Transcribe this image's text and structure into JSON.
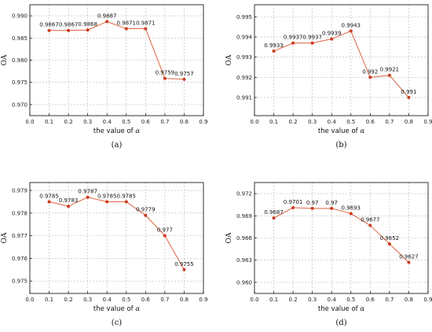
{
  "chart_data": [
    {
      "type": "line",
      "panel_label": "(a)",
      "xlabel_prefix": "the value of ",
      "xlabel_symbol": "α",
      "ylabel": "OA",
      "xlim": [
        0.0,
        0.9
      ],
      "ylim": [
        0.9675,
        0.9925
      ],
      "xticks": [
        "0.0",
        "0.1",
        "0.2",
        "0.3",
        "0.4",
        "0.5",
        "0.6",
        "0.7",
        "0.8",
        "0.9"
      ],
      "yticks": [
        "0.970",
        "0.975",
        "0.980",
        "0.985",
        "0.990"
      ],
      "grid": true,
      "x": [
        0.1,
        0.2,
        0.3,
        0.4,
        0.5,
        0.6,
        0.7,
        0.8
      ],
      "values": [
        0.9867,
        0.9867,
        0.9868,
        0.9887,
        0.9871,
        0.9871,
        0.9759,
        0.9757
      ],
      "data_labels": [
        "0.9867",
        "0.9867",
        "0.9868",
        "0.9887",
        "0.9871",
        "0.9871",
        "0.9759",
        "0.9757"
      ],
      "color": "#e07050"
    },
    {
      "type": "line",
      "panel_label": "(b)",
      "xlabel_prefix": "the value of ",
      "xlabel_symbol": "α",
      "ylabel": "OA",
      "xlim": [
        0.0,
        0.9
      ],
      "ylim": [
        0.9901,
        0.9956
      ],
      "xticks": [
        "0.0",
        "0.1",
        "0.2",
        "0.3",
        "0.4",
        "0.5",
        "0.6",
        "0.7",
        "0.8",
        "0.9"
      ],
      "yticks": [
        "0.991",
        "0.992",
        "0.993",
        "0.994",
        "0.995"
      ],
      "grid": true,
      "x": [
        0.1,
        0.2,
        0.3,
        0.4,
        0.5,
        0.6,
        0.7,
        0.8
      ],
      "values": [
        0.9933,
        0.9937,
        0.9937,
        0.9939,
        0.9943,
        0.992,
        0.9921,
        0.991
      ],
      "data_labels": [
        "0.9933",
        "0.9937",
        "0.9937",
        "0.9939",
        "0.9943",
        "0.992",
        "0.9921",
        "0.991"
      ],
      "color": "#e07050"
    },
    {
      "type": "line",
      "panel_label": "(c)",
      "xlabel_prefix": "the value of ",
      "xlabel_symbol": "α",
      "ylabel": "OA",
      "xlim": [
        0.0,
        0.9
      ],
      "ylim": [
        0.97445,
        0.97935
      ],
      "xticks": [
        "0.0",
        "0.1",
        "0.2",
        "0.3",
        "0.4",
        "0.5",
        "0.6",
        "0.7",
        "0.8",
        "0.9"
      ],
      "yticks": [
        "0.975",
        "0.976",
        "0.977",
        "0.978",
        "0.979"
      ],
      "grid": true,
      "x": [
        0.1,
        0.2,
        0.3,
        0.4,
        0.5,
        0.6,
        0.7,
        0.8
      ],
      "values": [
        0.9785,
        0.9783,
        0.9787,
        0.9785,
        0.9785,
        0.9779,
        0.977,
        0.9755
      ],
      "data_labels": [
        "0.9785",
        "0.9783",
        "0.9787",
        "0.9785",
        "0.9785",
        "0.9779",
        "0.977",
        "0.9755"
      ],
      "color": "#e07050"
    },
    {
      "type": "line",
      "panel_label": "(d)",
      "xlabel_prefix": "the value of ",
      "xlabel_symbol": "α",
      "ylabel": "OA",
      "xlim": [
        0.0,
        0.9
      ],
      "ylim": [
        0.9585,
        0.9735
      ],
      "xticks": [
        "0.0",
        "0.1",
        "0.2",
        "0.3",
        "0.4",
        "0.5",
        "0.6",
        "0.7",
        "0.8",
        "0.9"
      ],
      "yticks": [
        "0.960",
        "0.963",
        "0.966",
        "0.969",
        "0.972"
      ],
      "grid": true,
      "x": [
        0.1,
        0.2,
        0.3,
        0.4,
        0.5,
        0.6,
        0.7,
        0.8
      ],
      "values": [
        0.9687,
        0.9701,
        0.97,
        0.97,
        0.9693,
        0.9677,
        0.9652,
        0.9627
      ],
      "data_labels": [
        "0.9687",
        "0.9701",
        "0.97",
        "0.97",
        "0.9693",
        "0.9677",
        "0.9652",
        "0.9627"
      ],
      "color": "#e07050"
    }
  ]
}
